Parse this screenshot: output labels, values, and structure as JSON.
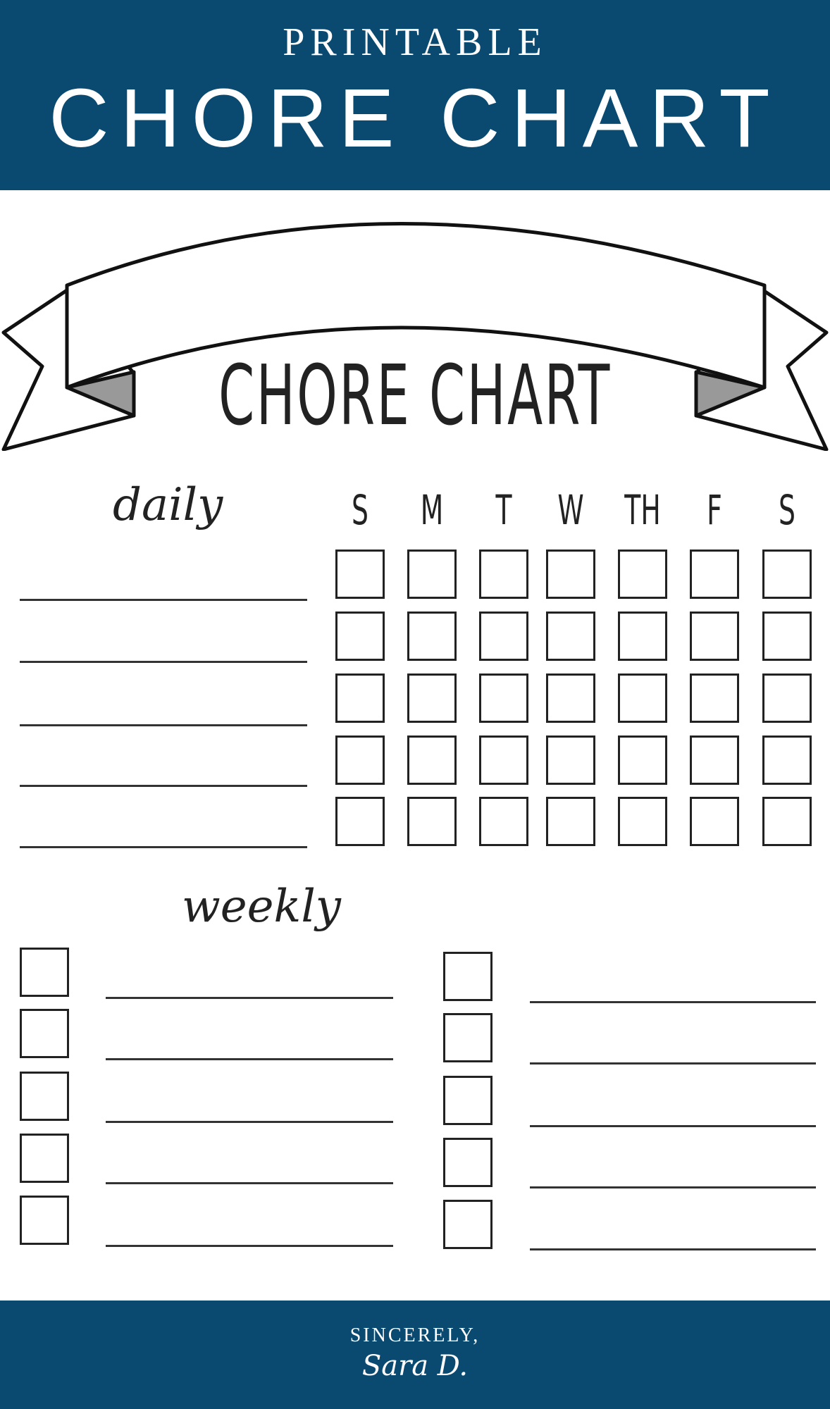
{
  "header": {
    "subtitle": "PRINTABLE",
    "title": "CHORE CHART"
  },
  "chart": {
    "title": "CHORE CHART",
    "daily_label": "daily",
    "weekly_label": "weekly",
    "days": [
      "S",
      "M",
      "T",
      "W",
      "TH",
      "F",
      "S"
    ]
  },
  "footer": {
    "line1": "SINCERELY,",
    "signature": "Sara D."
  },
  "colors": {
    "brand": "#0a4a71",
    "ink": "#222222"
  }
}
